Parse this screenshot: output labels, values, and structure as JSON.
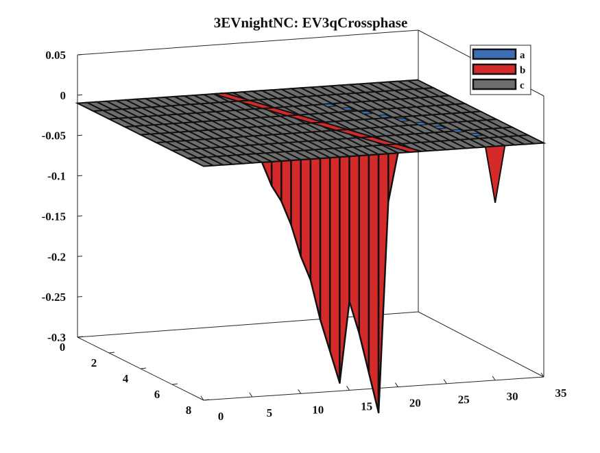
{
  "chart_data": {
    "type": "surface3d",
    "title": "3EVnightNC: EV3qCrossphase",
    "zlim": [
      -0.3,
      0.05
    ],
    "xlim": [
      0,
      35
    ],
    "ylim": [
      0,
      8
    ],
    "z_ticks": [
      "0.05",
      "0",
      "-0.05",
      "-0.1",
      "-0.15",
      "-0.2",
      "-0.25",
      "-0.3"
    ],
    "x_ticks": [
      "0",
      "5",
      "10",
      "15",
      "20",
      "25",
      "30",
      "35"
    ],
    "y_ticks": [
      "0",
      "2",
      "4",
      "6",
      "8"
    ],
    "legend": {
      "placement": "top-right",
      "entries": [
        {
          "label": "a",
          "color": "#3d6fb6"
        },
        {
          "label": "b",
          "color": "#d42a2a"
        },
        {
          "label": "c",
          "color": "#6e6e6e"
        }
      ]
    },
    "series": [
      {
        "name": "a",
        "color": "#3d6fb6",
        "description_values": {
          "x_range": [
            22,
            31
          ],
          "y_index": 0,
          "z_min": -0.08
        }
      },
      {
        "name": "b",
        "color": "#d42a2a",
        "values_along_x_at_edge": [
          [
            0,
            0
          ],
          [
            6,
            0
          ],
          [
            7,
            -0.03
          ],
          [
            8,
            -0.05
          ],
          [
            9,
            -0.08
          ],
          [
            10,
            -0.12
          ],
          [
            11,
            -0.15
          ],
          [
            12,
            -0.2
          ],
          [
            13,
            -0.24
          ],
          [
            14,
            -0.28
          ],
          [
            15,
            -0.18
          ],
          [
            16,
            -0.22
          ],
          [
            17,
            -0.27
          ],
          [
            18,
            -0.32
          ],
          [
            19,
            -0.06
          ],
          [
            20,
            0
          ],
          [
            35,
            0
          ]
        ]
      },
      {
        "name": "c",
        "color": "#6e6e6e",
        "z_level": -0.01
      }
    ]
  }
}
